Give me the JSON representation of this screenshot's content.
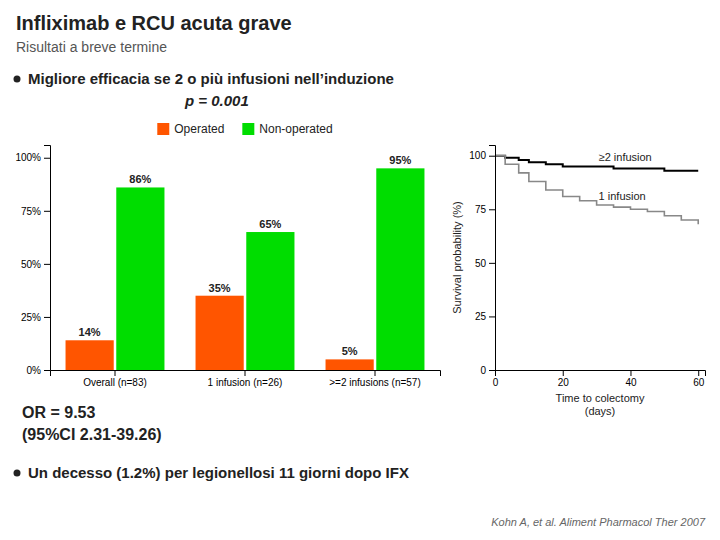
{
  "chart_data": [
    {
      "type": "bar",
      "title": "Infliximab e RCU acuta grave",
      "subtitle": "Risultati a breve termine",
      "annotations": [
        "Migliore efficacia se 2 o più infusioni nell’induzione",
        "p = 0.001",
        "OR = 9.53",
        "(95%CI 2.31-39.26)",
        "Un decesso (1.2%) per legionellosi 11 giorni dopo IFX",
        "Kohn A, et al. Aliment Pharmacol Ther 2007"
      ],
      "categories": [
        "Overall (n=83)",
        "1 infusion (n=26)",
        ">=2 infusions (n=57)"
      ],
      "series": [
        {
          "name": "Operated",
          "color": "#FF5500",
          "values": [
            14,
            35,
            5
          ],
          "value_labels": [
            "14%",
            "35%",
            "5%"
          ]
        },
        {
          "name": "Non-operated",
          "color": "#00DD00",
          "values": [
            86,
            65,
            95
          ],
          "value_labels": [
            "86%",
            "65%",
            "95%"
          ]
        }
      ],
      "ylim": [
        0,
        106
      ],
      "yticks": [
        {
          "value": 0,
          "label": "0%"
        },
        {
          "value": 25,
          "label": "25%"
        },
        {
          "value": 50,
          "label": "50%"
        },
        {
          "value": 75,
          "label": "75%"
        },
        {
          "value": 100,
          "label": "100%"
        }
      ],
      "grid": false,
      "legend": "top",
      "data_labels": true
    },
    {
      "type": "line",
      "line_style": "step",
      "x_label": "Time to colectomy\n(days)",
      "y_label": "Survival probability (%)",
      "x": [
        0,
        3,
        7,
        10,
        15,
        20,
        25,
        30,
        35,
        40,
        45,
        50,
        55,
        60
      ],
      "series": [
        {
          "name": "≥2 infusion",
          "color": "#000000",
          "values": [
            100,
            99,
            98,
            97,
            96,
            95,
            95,
            95,
            94,
            94,
            94,
            93,
            93,
            93
          ]
        },
        {
          "name": "1 infusion",
          "color": "#888888",
          "values": [
            100,
            96,
            92,
            88,
            84,
            81,
            79,
            77,
            76,
            75,
            74,
            72,
            70,
            68
          ]
        }
      ],
      "xlim": [
        0,
        62
      ],
      "ylim": [
        0,
        105
      ],
      "xticks": [
        0,
        20,
        40,
        60
      ],
      "yticks": [
        0,
        25,
        50,
        75,
        100
      ],
      "grid": false
    }
  ]
}
